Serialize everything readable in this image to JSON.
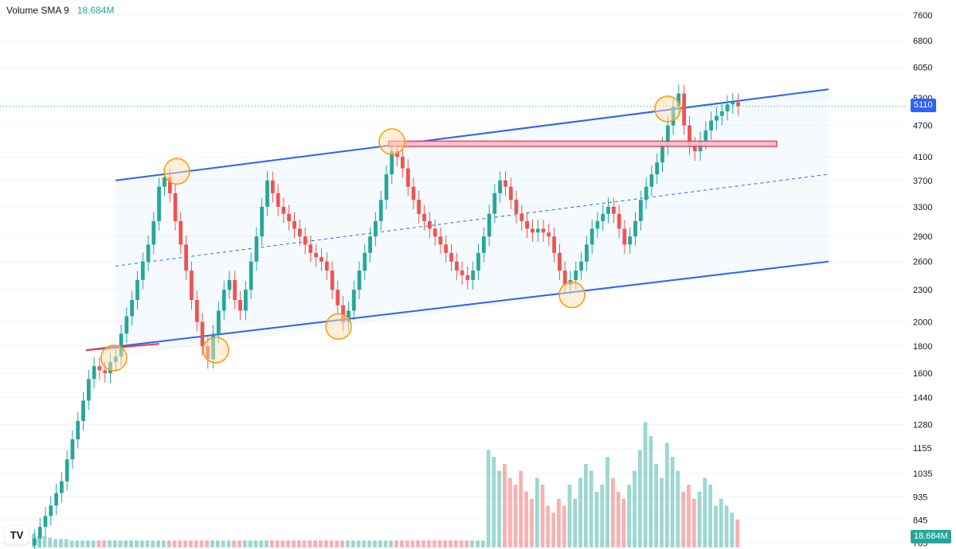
{
  "legend": {
    "label": "Volume SMA 9",
    "value": "18.684M"
  },
  "colors": {
    "up": "#26a69a",
    "down": "#ef5350",
    "channel": "#2962ff",
    "channel_fill": "#e3f2fd",
    "resistance": "#f23645",
    "highlight": "#ff9800"
  },
  "price_tags": {
    "last_price": "5110",
    "volume_sma": "18.684M"
  },
  "chart_data": {
    "type": "candlestick",
    "y_scale": "log",
    "price_axis_ticks": [
      "7600",
      "6800",
      "6050",
      "5300",
      "4700",
      "4100",
      "3700",
      "3300",
      "2900",
      "2600",
      "2300",
      "2000",
      "1800",
      "1600",
      "1440",
      "1280",
      "1155",
      "1035",
      "935",
      "845",
      "765"
    ],
    "last_price": 5110,
    "channel": {
      "upper": {
        "start": 3700,
        "end": 5500
      },
      "lower": {
        "start": 1720,
        "end": 2600
      },
      "mid": {
        "start": 2550,
        "end": 3800
      }
    },
    "resistance_zone": {
      "low": 4290,
      "high": 4390
    },
    "touch_points": [
      1710,
      3850,
      1770,
      1960,
      4380,
      2250,
      5050
    ],
    "candles_close": [
      780,
      820,
      860,
      900,
      950,
      1000,
      1100,
      1200,
      1300,
      1420,
      1560,
      1650,
      1620,
      1600,
      1680,
      1720,
      1900,
      2050,
      2200,
      2400,
      2600,
      2800,
      3100,
      3600,
      3750,
      3500,
      3100,
      2800,
      2500,
      2200,
      2000,
      1800,
      1700,
      1900,
      2100,
      2300,
      2400,
      2200,
      2100,
      2300,
      2600,
      2900,
      3300,
      3700,
      3500,
      3300,
      3200,
      3100,
      3000,
      2900,
      2800,
      2700,
      2650,
      2600,
      2500,
      2300,
      2150,
      2000,
      2100,
      2300,
      2500,
      2700,
      2900,
      3100,
      3400,
      3800,
      4200,
      4100,
      3900,
      3600,
      3400,
      3200,
      3100,
      3000,
      2900,
      2800,
      2700,
      2600,
      2500,
      2450,
      2400,
      2500,
      2700,
      2900,
      3200,
      3500,
      3700,
      3600,
      3400,
      3200,
      3100,
      3000,
      2950,
      3000,
      2950,
      2900,
      2700,
      2500,
      2350,
      2400,
      2500,
      2600,
      2800,
      3000,
      3100,
      3200,
      3300,
      3200,
      3000,
      2800,
      2900,
      3100,
      3400,
      3600,
      3800,
      4000,
      4300,
      4700,
      5100,
      5400,
      4700,
      4300,
      4200,
      4400,
      4600,
      4800,
      4900,
      5000,
      5150,
      5200,
      5110
    ],
    "volume_rel": [
      0.1,
      0.08,
      0.08,
      0.07,
      0.06,
      0.06,
      0.06,
      0.05,
      0.05,
      0.05,
      0.05,
      0.05,
      0.05,
      0.05,
      0.05,
      0.05,
      0.05,
      0.05,
      0.05,
      0.05,
      0.05,
      0.05,
      0.05,
      0.05,
      0.05,
      0.05,
      0.05,
      0.05,
      0.05,
      0.05,
      0.05,
      0.05,
      0.05,
      0.05,
      0.05,
      0.05,
      0.05,
      0.05,
      0.05,
      0.05,
      0.05,
      0.05,
      0.05,
      0.05,
      0.05,
      0.05,
      0.05,
      0.05,
      0.05,
      0.05,
      0.05,
      0.05,
      0.05,
      0.05,
      0.05,
      0.05,
      0.05,
      0.05,
      0.05,
      0.05,
      0.05,
      0.05,
      0.05,
      0.05,
      0.05,
      0.05,
      0.05,
      0.05,
      0.05,
      0.05,
      0.05,
      0.05,
      0.05,
      0.05,
      0.05,
      0.05,
      0.05,
      0.05,
      0.05,
      0.05,
      0.05,
      0.05,
      0.05,
      0.05,
      0.7,
      0.65,
      0.55,
      0.6,
      0.5,
      0.45,
      0.55,
      0.4,
      0.35,
      0.5,
      0.45,
      0.3,
      0.25,
      0.35,
      0.3,
      0.45,
      0.35,
      0.5,
      0.6,
      0.55,
      0.4,
      0.45,
      0.65,
      0.5,
      0.4,
      0.35,
      0.45,
      0.55,
      0.7,
      0.9,
      0.8,
      0.6,
      0.5,
      0.75,
      0.65,
      0.55,
      0.4,
      0.45,
      0.35,
      0.4,
      0.5,
      0.45,
      0.3,
      0.35,
      0.3,
      0.25,
      0.2
    ]
  }
}
